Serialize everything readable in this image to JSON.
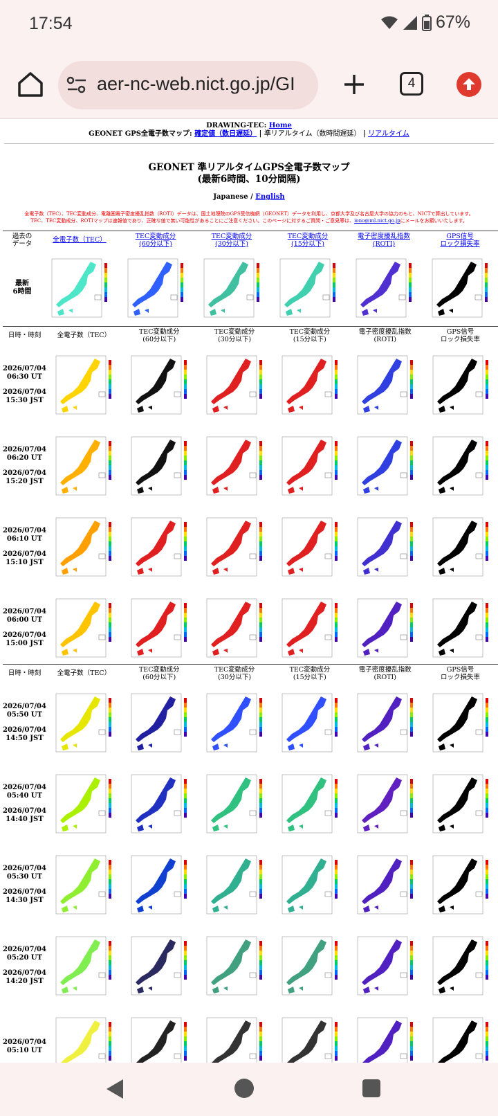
{
  "status": {
    "time": "17:54",
    "battery": "67%"
  },
  "browser": {
    "url": "aer-nc-web.nict.go.jp/GI",
    "tab_count": "4"
  },
  "page": {
    "brand": "DRAWING-TEC:",
    "home_link": "Home",
    "nav_prefix": "GEONET GPS全電子数マップ:",
    "nav_fixed": "確定値（数日遅延）",
    "nav_sep1": "|",
    "nav_current": "準リアルタイム（数時間遅延）",
    "nav_sep2": "|",
    "nav_realtime": "リアルタイム",
    "title_line1": "GEONET 準リアルタイムGPS全電子数マップ",
    "title_line2": "(最新6時間、10分間隔)",
    "lang_japanese": "Japanese /",
    "lang_english": "English",
    "notice_line1": "全電子数（TEC）、TEC変動成分、電離圏電子密度擾乱指数（ROTI）データは、国土地理院のGPS受信機網（GEONET）データを利用し、京都大学及び名古屋大学の協力のもと、NICTで算出しています。",
    "notice_line2a": "TEC、TEC変動成分、ROTIマップは速報値であり、正確な値で無い可能性があることにご注意ください。このページに対するご質問・ご意見等は、",
    "notice_email": "iono@ml.nict.go.jp",
    "notice_line2b": "にメールをお願いいたします。"
  },
  "header_links": {
    "past": [
      "過去の",
      "データ"
    ],
    "cols": [
      [
        "全電子数（TEC）",
        ""
      ],
      [
        "TEC変動成分",
        "(60分以下)"
      ],
      [
        "TEC変動成分",
        "(30分以下)"
      ],
      [
        "TEC変動成分",
        "(15分以下)"
      ],
      [
        "電子密度擾乱指数",
        "(ROTI)"
      ],
      [
        "GPS信号",
        "ロック損失率"
      ]
    ]
  },
  "header_plain": {
    "first": "日時・時刻",
    "cols": [
      [
        "全電子数（TEC）",
        ""
      ],
      [
        "TEC変動成分",
        "(60分以下)"
      ],
      [
        "TEC変動成分",
        "(30分以下)"
      ],
      [
        "TEC変動成分",
        "(15分以下)"
      ],
      [
        "電子密度擾乱指数",
        "(ROTI)"
      ],
      [
        "GPS信号",
        "ロック損失率"
      ]
    ]
  },
  "latest_label": [
    "最新",
    "6時間"
  ],
  "rows": [
    {
      "date1": "2026/07/04",
      "ut": "06:30 UT",
      "date2": "2026/07/04",
      "jst": "15:30 JST"
    },
    {
      "date1": "2026/07/04",
      "ut": "06:20 UT",
      "date2": "2026/07/04",
      "jst": "15:20 JST"
    },
    {
      "date1": "2026/07/04",
      "ut": "06:10 UT",
      "date2": "2026/07/04",
      "jst": "15:10 JST"
    },
    {
      "date1": "2026/07/04",
      "ut": "06:00 UT",
      "date2": "2026/07/04",
      "jst": "15:00 JST"
    },
    {
      "date1": "2026/07/04",
      "ut": "05:50 UT",
      "date2": "2026/07/04",
      "jst": "14:50 JST"
    },
    {
      "date1": "2026/07/04",
      "ut": "05:40 UT",
      "date2": "2026/07/04",
      "jst": "14:40 JST"
    },
    {
      "date1": "2026/07/04",
      "ut": "05:30 UT",
      "date2": "2026/07/04",
      "jst": "14:30 JST"
    },
    {
      "date1": "2026/07/04",
      "ut": "05:20 UT",
      "date2": "2026/07/04",
      "jst": "14:20 JST"
    },
    {
      "date1": "2026/07/04",
      "ut": "05:10 UT",
      "date2": "",
      "jst": ""
    }
  ],
  "map_colors": {
    "tec": [
      "#4ee6c8",
      "#ffd400",
      "#ffb000",
      "#ffa000",
      "#ffc400",
      "#e6e600",
      "#aaf000",
      "#90ee30",
      "#80ee50",
      "#f0f040"
    ],
    "d60": [
      "#3060ff",
      "#111111",
      "#111111",
      "#e02020",
      "#e02020",
      "#2020a0",
      "#2030c0",
      "#1040d0",
      "#2a2a60",
      "#222"
    ],
    "d30": [
      "#40c0a0",
      "#e02020",
      "#e02020",
      "#e02020",
      "#e02020",
      "#3050ff",
      "#30c080",
      "#30b090",
      "#40a080",
      "#333"
    ],
    "d15": [
      "#40d0b0",
      "#e02020",
      "#e02020",
      "#e02020",
      "#e02020",
      "#3050ff",
      "#30c080",
      "#30b090",
      "#40a080",
      "#333"
    ],
    "roti": [
      "#5030d0",
      "#3040e0",
      "#3040e0",
      "#4030d0",
      "#5020c0",
      "#5020c0",
      "#6020c0",
      "#5020c0",
      "#5020c0",
      "#5020c0"
    ],
    "lock": [
      "#000000",
      "#000000",
      "#000000",
      "#000000",
      "#000000",
      "#000000",
      "#000000",
      "#000000",
      "#000000",
      "#000000"
    ]
  }
}
